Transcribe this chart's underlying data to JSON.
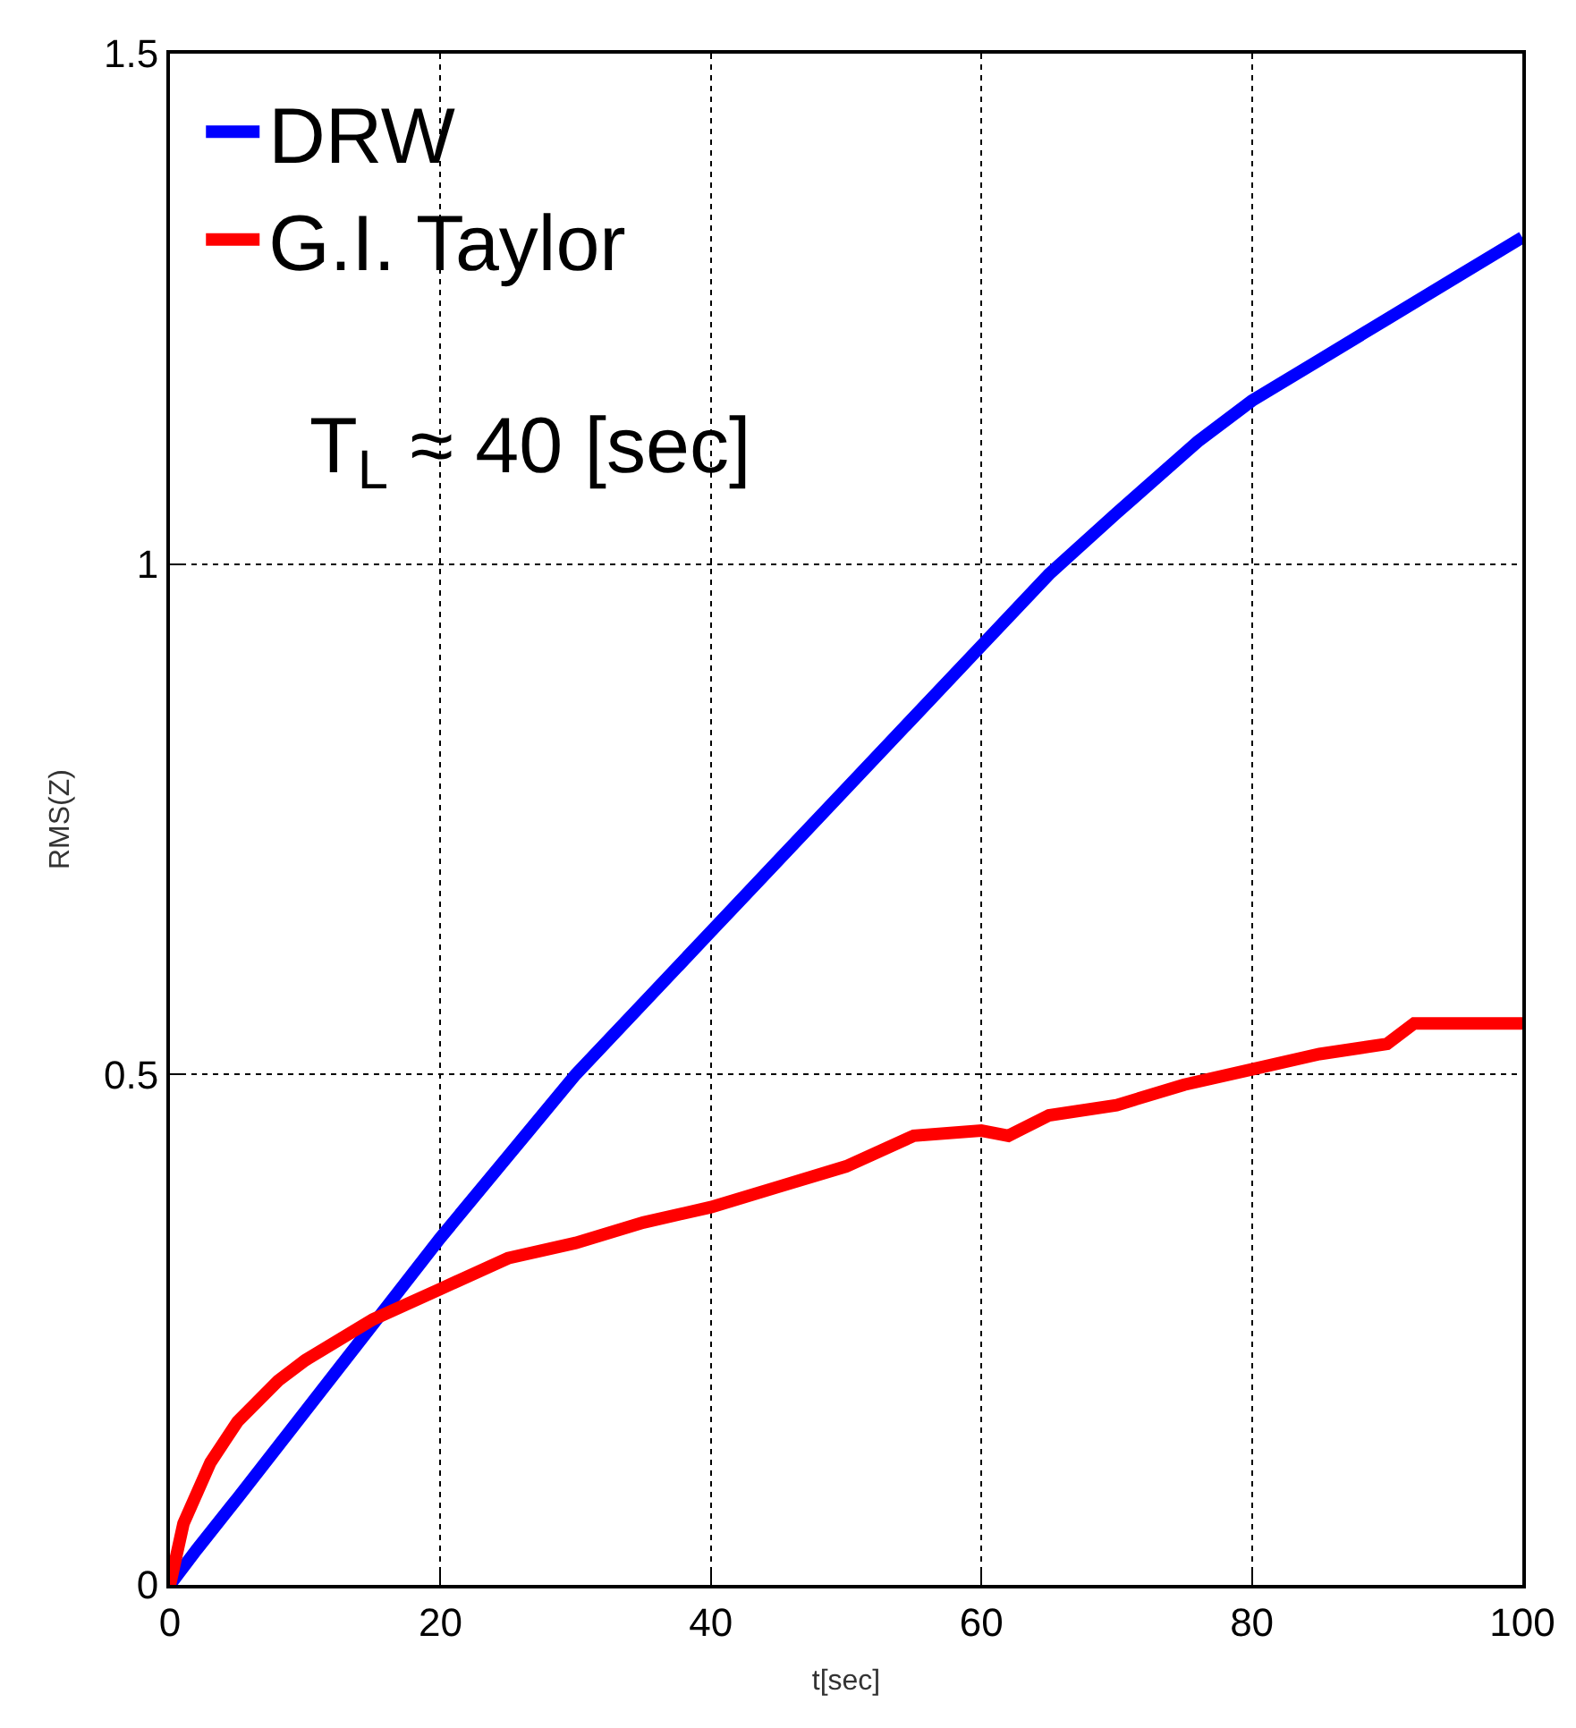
{
  "chart_data": {
    "type": "line",
    "xlabel": "t[sec]",
    "ylabel": "RMS(Z)",
    "x": [
      0,
      2,
      5,
      10,
      15,
      20,
      25,
      30,
      35,
      40,
      45,
      50,
      55,
      60,
      65,
      70,
      76,
      80,
      85,
      90,
      95,
      100
    ],
    "series": [
      {
        "name": "DRW",
        "color": "#0000ff",
        "values": [
          0,
          0.035,
          0.085,
          0.17,
          0.255,
          0.34,
          0.42,
          0.5,
          0.57,
          0.64,
          0.71,
          0.78,
          0.85,
          0.92,
          0.99,
          1.05,
          1.12,
          1.16,
          1.2,
          1.24,
          1.28,
          1.32
        ]
      },
      {
        "name": "G.I. Taylor",
        "color": "#ff0000",
        "x": [
          0,
          1,
          3,
          5,
          8,
          10,
          15,
          20,
          25,
          30,
          35,
          40,
          45,
          50,
          55,
          60,
          62,
          65,
          70,
          75,
          80,
          85,
          90,
          92,
          95,
          100
        ],
        "values": [
          0,
          0.06,
          0.12,
          0.16,
          0.2,
          0.22,
          0.26,
          0.29,
          0.32,
          0.335,
          0.355,
          0.37,
          0.39,
          0.41,
          0.44,
          0.445,
          0.44,
          0.46,
          0.47,
          0.49,
          0.505,
          0.52,
          0.53,
          0.55,
          0.55,
          0.55
        ]
      }
    ],
    "xlim": [
      0,
      100
    ],
    "xticks": [
      0,
      20,
      40,
      60,
      80,
      100
    ],
    "ylim": [
      0,
      1.5
    ],
    "yticks": [
      0,
      0.5,
      1,
      1.5
    ],
    "grid": true,
    "legend": "top left",
    "line_style": "solid",
    "marker": "none",
    "annotations": [
      "T$_{L}$ ≈ 40 [sec]"
    ]
  }
}
